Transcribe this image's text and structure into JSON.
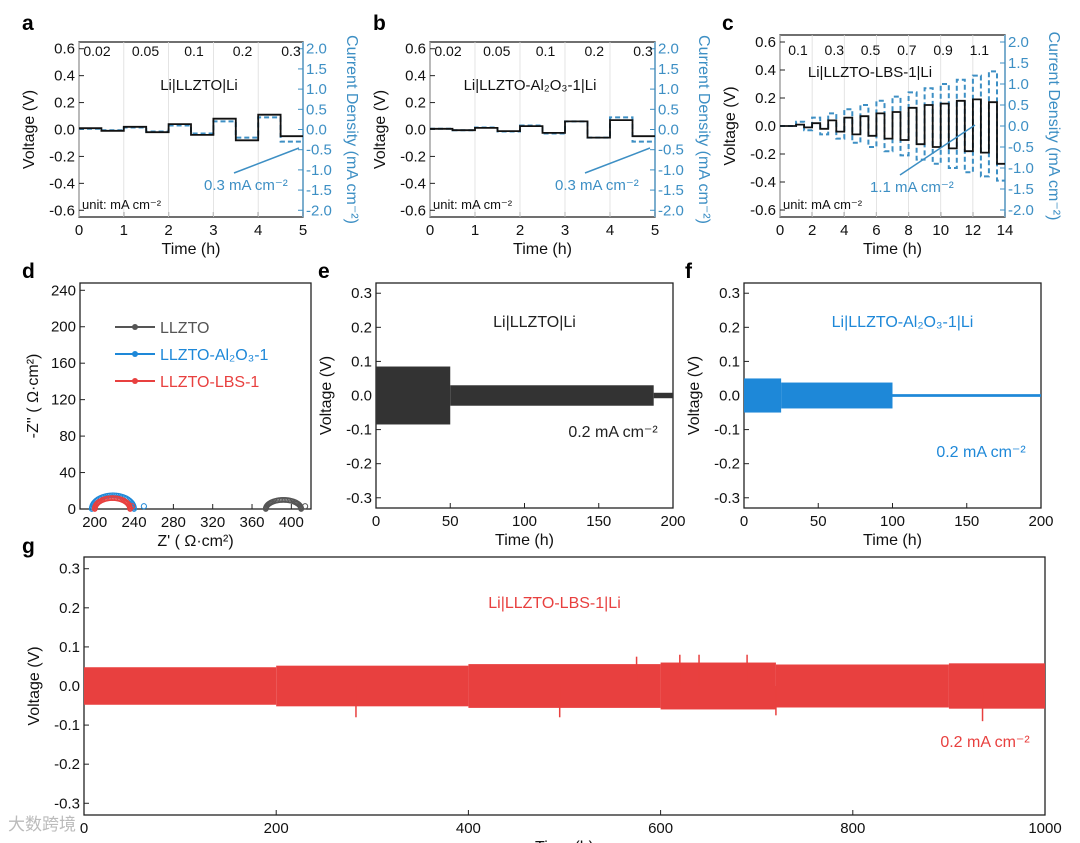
{
  "watermark": "大数跨境",
  "colors": {
    "black": "#2a2a2a",
    "blue": "#1e88d8",
    "red": "#e8403f",
    "current": "#3d8fc4"
  },
  "chart_data": [
    {
      "panel": "a",
      "type": "line",
      "title": "Li|LLZTO|Li",
      "xlabel": "Time (h)",
      "ylabel": "Voltage (V)",
      "y2label": "Current Density (mA cm⁻²)",
      "xlim": [
        0,
        5
      ],
      "ylim": [
        -0.65,
        0.65
      ],
      "y2lim": [
        -2.1667,
        2.1667
      ],
      "xticks": [
        "0",
        "1",
        "2",
        "3",
        "4",
        "5"
      ],
      "yticks": [
        "-0.6",
        "-0.4",
        "-0.2",
        "0.0",
        "0.2",
        "0.4",
        "0.6"
      ],
      "y2ticks": [
        "-2.0",
        "-1.5",
        "-1.0",
        "-0.5",
        "0.0",
        "0.5",
        "1.0",
        "1.5",
        "2.0"
      ],
      "step_labels": [
        "0.02",
        "0.05",
        "0.1",
        "0.2",
        "0.3"
      ],
      "unit_note": "unit: mA cm⁻²",
      "annotation": "0.3 mA cm⁻²",
      "half_cycle_h": 0.5,
      "cycles": [
        {
          "current": 0.02,
          "voltage": 0.01
        },
        {
          "current": 0.05,
          "voltage": 0.02
        },
        {
          "current": 0.1,
          "voltage": 0.04
        },
        {
          "current": 0.2,
          "voltage": 0.08
        },
        {
          "current": 0.3,
          "voltage": 0.11
        }
      ],
      "tail_voltage": -0.05
    },
    {
      "panel": "b",
      "type": "line",
      "title": "Li|LLZTO-Al₂O₃-1|Li",
      "xlabel": "Time (h)",
      "ylabel": "Voltage (V)",
      "y2label": "Current Density (mA cm⁻²)",
      "xlim": [
        0,
        5
      ],
      "ylim": [
        -0.65,
        0.65
      ],
      "y2lim": [
        -2.1667,
        2.1667
      ],
      "xticks": [
        "0",
        "1",
        "2",
        "3",
        "4",
        "5"
      ],
      "yticks": [
        "-0.6",
        "-0.4",
        "-0.2",
        "0.0",
        "0.2",
        "0.4",
        "0.6"
      ],
      "y2ticks": [
        "-2.0",
        "-1.5",
        "-1.0",
        "-0.5",
        "0.0",
        "0.5",
        "1.0",
        "1.5",
        "2.0"
      ],
      "step_labels": [
        "0.02",
        "0.05",
        "0.1",
        "0.2",
        "0.3"
      ],
      "unit_note": "unit: mA cm⁻²",
      "annotation": "0.3 mA cm⁻²",
      "half_cycle_h": 0.5,
      "cycles": [
        {
          "current": 0.02,
          "voltage": 0.005
        },
        {
          "current": 0.05,
          "voltage": 0.012
        },
        {
          "current": 0.1,
          "voltage": 0.025
        },
        {
          "current": 0.2,
          "voltage": 0.06
        },
        {
          "current": 0.3,
          "voltage": 0.07
        }
      ],
      "tail_voltage": -0.05
    },
    {
      "panel": "c",
      "type": "line",
      "title": "Li|LLZTO-LBS-1|Li",
      "xlabel": "Time (h)",
      "ylabel": "Voltage (V)",
      "y2label": "Current Density (mA cm⁻²)",
      "xlim": [
        0,
        14
      ],
      "ylim": [
        -0.65,
        0.65
      ],
      "y2lim": [
        -2.1667,
        2.1667
      ],
      "xticks": [
        "0",
        "2",
        "4",
        "6",
        "8",
        "10",
        "12",
        "14"
      ],
      "yticks": [
        "-0.6",
        "-0.4",
        "-0.2",
        "0.0",
        "0.2",
        "0.4",
        "0.6"
      ],
      "y2ticks": [
        "-2.0",
        "-1.5",
        "-1.0",
        "-0.5",
        "0.0",
        "0.5",
        "1.0",
        "1.5",
        "2.0"
      ],
      "step_labels": [
        "0.1",
        "0.3",
        "0.5",
        "0.7",
        "0.9",
        "1.1"
      ],
      "unit_note": "unit: mA cm⁻²",
      "annotation": "1.1 mA cm⁻²",
      "half_cycle_h": 0.5,
      "cycles": [
        {
          "current": 0.0,
          "voltage": 0.0
        },
        {
          "current": 0.1,
          "voltage": 0.01
        },
        {
          "current": 0.2,
          "voltage": 0.02
        },
        {
          "current": 0.3,
          "voltage": 0.04
        },
        {
          "current": 0.4,
          "voltage": 0.06
        },
        {
          "current": 0.5,
          "voltage": 0.07
        },
        {
          "current": 0.6,
          "voltage": 0.09
        },
        {
          "current": 0.7,
          "voltage": 0.1
        },
        {
          "current": 0.8,
          "voltage": 0.13
        },
        {
          "current": 0.9,
          "voltage": 0.15
        },
        {
          "current": 1.0,
          "voltage": 0.16
        },
        {
          "current": 1.1,
          "voltage": 0.18
        },
        {
          "current": 1.2,
          "voltage": 0.19
        },
        {
          "current": 1.3,
          "voltage": 0.17
        }
      ],
      "tail_voltage": -0.27
    },
    {
      "panel": "d",
      "type": "line",
      "xlabel": "Z' ( Ω·cm²)",
      "ylabel": "-Z'' ( Ω·cm²)",
      "xlim": [
        185,
        420
      ],
      "ylim": [
        0,
        248
      ],
      "xticks": [
        "200",
        "240",
        "280",
        "320",
        "360",
        "400"
      ],
      "yticks": [
        "0",
        "40",
        "80",
        "120",
        "160",
        "200",
        "240"
      ],
      "series": [
        {
          "name": "LLZTO",
          "color": "#555555",
          "start": 374,
          "end": 410,
          "peak": 10,
          "tail_end": 414
        },
        {
          "name": "LLZTO-Al₂O₃-1",
          "color": "#1e88d8",
          "start": 197,
          "end": 240,
          "peak": 15,
          "tail_end": 250
        },
        {
          "name": "LLZTO-LBS-1",
          "color": "#e8403f",
          "start": 200,
          "end": 236,
          "peak": 12,
          "tail_end": 238
        }
      ]
    },
    {
      "panel": "e",
      "type": "line",
      "title": "Li|LLZTO|Li",
      "annotation": "0.2 mA cm⁻²",
      "xlabel": "Time (h)",
      "ylabel": "Voltage (V)",
      "xlim": [
        0,
        200
      ],
      "ylim": [
        -0.33,
        0.33
      ],
      "xticks": [
        "0",
        "50",
        "100",
        "150",
        "200"
      ],
      "yticks": [
        "-0.3",
        "-0.2",
        "-0.1",
        "0.0",
        "0.1",
        "0.2",
        "0.3"
      ],
      "envelope": [
        [
          0,
          50,
          0.085
        ],
        [
          50,
          187,
          0.03
        ],
        [
          187,
          200,
          0.008
        ]
      ],
      "spikes": []
    },
    {
      "panel": "f",
      "type": "line",
      "title": "Li|LLZTO-Al₂O₃-1|Li",
      "annotation": "0.2 mA cm⁻²",
      "xlabel": "Time (h)",
      "ylabel": "Voltage (V)",
      "xlim": [
        0,
        200
      ],
      "ylim": [
        -0.33,
        0.33
      ],
      "xticks": [
        "0",
        "50",
        "100",
        "150",
        "200"
      ],
      "yticks": [
        "-0.3",
        "-0.2",
        "-0.1",
        "0.0",
        "0.1",
        "0.2",
        "0.3"
      ],
      "envelope": [
        [
          0,
          25,
          0.05
        ],
        [
          25,
          100,
          0.038
        ],
        [
          100,
          200,
          0.004
        ]
      ],
      "spikes": []
    },
    {
      "panel": "g",
      "type": "line",
      "title": "Li|LLZTO-LBS-1|Li",
      "annotation": "0.2 mA cm⁻²",
      "xlabel": "Time (h)",
      "ylabel": "Voltage (V)",
      "xlim": [
        0,
        1000
      ],
      "ylim": [
        -0.33,
        0.33
      ],
      "xticks": [
        "0",
        "200",
        "400",
        "600",
        "800",
        "1000"
      ],
      "yticks": [
        "-0.3",
        "-0.2",
        "-0.1",
        "0.0",
        "0.1",
        "0.2",
        "0.3"
      ],
      "envelope": [
        [
          0,
          200,
          0.048
        ],
        [
          200,
          400,
          0.052
        ],
        [
          400,
          600,
          0.056
        ],
        [
          600,
          720,
          0.06
        ],
        [
          720,
          900,
          0.055
        ],
        [
          900,
          1000,
          0.058
        ]
      ],
      "spikes": [
        [
          283,
          -0.08
        ],
        [
          495,
          -0.08
        ],
        [
          575,
          0.075
        ],
        [
          620,
          0.08
        ],
        [
          640,
          0.08
        ],
        [
          690,
          0.08
        ],
        [
          720,
          -0.075
        ],
        [
          935,
          -0.09
        ]
      ]
    }
  ]
}
